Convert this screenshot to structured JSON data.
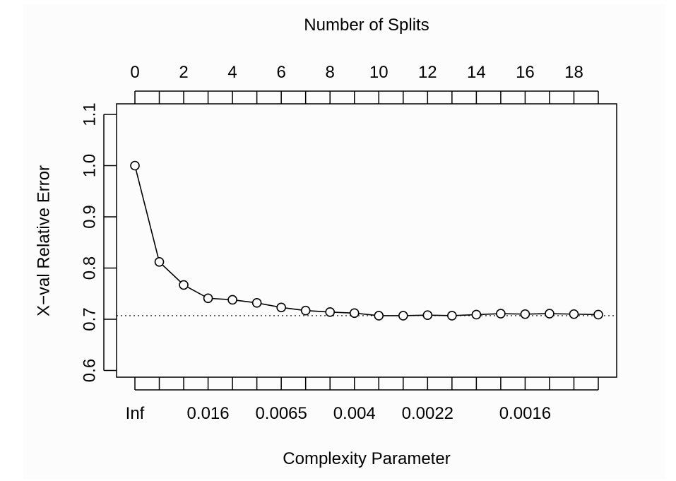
{
  "chart_data": {
    "type": "line",
    "title": "",
    "xlabel": "Complexity Parameter",
    "ylabel": "X−val Relative Error",
    "top_axis_label": "Number of Splits",
    "top_ticks": [
      "0",
      "2",
      "4",
      "6",
      "8",
      "10",
      "12",
      "14",
      "16",
      "18"
    ],
    "top_tick_values": [
      0,
      2,
      4,
      6,
      8,
      10,
      12,
      14,
      16,
      18
    ],
    "bottom_ticks": [
      "Inf",
      "0.016",
      "0.0065",
      "0.004",
      "0.0022",
      "0.0016"
    ],
    "bottom_tick_positions": [
      0,
      3,
      6,
      9,
      12,
      16
    ],
    "y_ticks": [
      "0.6",
      "0.7",
      "0.8",
      "0.9",
      "1.0",
      "1.1"
    ],
    "y_tick_values": [
      0.6,
      0.7,
      0.8,
      0.9,
      1.0,
      1.1
    ],
    "xlim": [
      -0.75,
      19.75
    ],
    "ylim": [
      0.587,
      1.12
    ],
    "x": [
      0,
      1,
      2,
      3,
      4,
      5,
      6,
      7,
      8,
      9,
      10,
      11,
      12,
      13,
      14,
      15,
      16,
      17,
      18,
      19
    ],
    "series": [
      {
        "values": [
          1.0,
          0.812,
          0.767,
          0.741,
          0.738,
          0.732,
          0.723,
          0.717,
          0.714,
          0.712,
          0.707,
          0.707,
          0.708,
          0.707,
          0.709,
          0.711,
          0.71,
          0.711,
          0.71,
          0.709
        ]
      }
    ],
    "reference_line": 0.707,
    "marker": "open-circle",
    "line_color": "#000000",
    "grid": false,
    "legend": "none"
  }
}
